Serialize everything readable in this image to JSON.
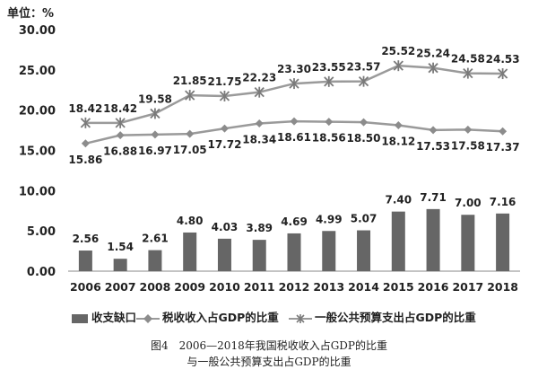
{
  "unit_label": "单位：%",
  "caption_line1": "图4　2006—2018年我国税收收入占GDP的比重",
  "caption_line2": "与一般公共预算支出占GDP的比重",
  "colors": {
    "bar": "#666666",
    "tax_line": "#9a9a9a",
    "spend_line": "#9a9a9a",
    "tax_marker": "#8c8c8c",
    "spend_marker": "#7a7a7a"
  },
  "chart_data": {
    "type": "bar",
    "categories": [
      "2006",
      "2007",
      "2008",
      "2009",
      "2010",
      "2011",
      "2012",
      "2013",
      "2014",
      "2015",
      "2016",
      "2017",
      "2018"
    ],
    "y_ticks": [
      "0.00",
      "5.00",
      "10.00",
      "15.00",
      "20.00",
      "25.00",
      "30.00"
    ],
    "ylim": [
      0,
      30
    ],
    "grid": false,
    "legend_position": "bottom",
    "series": [
      {
        "name": "收支缺口",
        "kind": "bar",
        "values": [
          2.56,
          1.54,
          2.61,
          4.8,
          4.03,
          3.89,
          4.69,
          4.99,
          5.07,
          7.4,
          7.71,
          7.0,
          7.16
        ],
        "labels": [
          "2.56",
          "1.54",
          "2.61",
          "4.80",
          "4.03",
          "3.89",
          "4.69",
          "4.99",
          "5.07",
          "7.40",
          "7.71",
          "7.00",
          "7.16"
        ]
      },
      {
        "name": "税收收入占GDP的比重",
        "kind": "line",
        "marker": "diamond",
        "values": [
          15.86,
          16.88,
          16.97,
          17.05,
          17.72,
          18.34,
          18.61,
          18.56,
          18.5,
          18.12,
          17.53,
          17.58,
          17.37
        ],
        "labels": [
          "15.86",
          "16.88",
          "16.97",
          "17.05",
          "17.72",
          "18.34",
          "18.61",
          "18.56",
          "18.50",
          "18.12",
          "17.53",
          "17.58",
          "17.37"
        ]
      },
      {
        "name": "一般公共预算支出占GDP的比重",
        "kind": "line",
        "marker": "star",
        "values": [
          18.42,
          18.42,
          19.58,
          21.85,
          21.75,
          22.23,
          23.3,
          23.55,
          23.57,
          25.52,
          25.24,
          24.58,
          24.53
        ],
        "labels": [
          "18.42",
          "18.42",
          "19.58",
          "21.85",
          "21.75",
          "22.23",
          "23.30",
          "23.55",
          "23.57",
          "25.52",
          "25.24",
          "24.58",
          "24.53"
        ]
      }
    ]
  }
}
